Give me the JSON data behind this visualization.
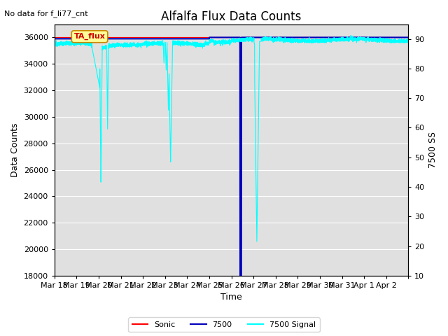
{
  "title": "Alfalfa Flux Data Counts",
  "top_left_text": "No data for f_li77_cnt",
  "xlabel": "Time",
  "ylabel_left": "Data Counts",
  "ylabel_right": "7500 SS",
  "ylim_left": [
    18000,
    37000
  ],
  "ylim_right": [
    10,
    95
  ],
  "yticks_left": [
    18000,
    20000,
    22000,
    24000,
    26000,
    28000,
    30000,
    32000,
    34000,
    36000
  ],
  "yticks_right": [
    10,
    20,
    30,
    40,
    50,
    60,
    70,
    80,
    90
  ],
  "bg_color": "#e0e0e0",
  "legend_labels": [
    "Sonic",
    "7500",
    "7500 Signal"
  ],
  "legend_colors": [
    "red",
    "#0000bb",
    "cyan"
  ],
  "box_label": "TA_flux",
  "box_bg": "#ffff99",
  "box_border": "#cc8800",
  "n_days": 16,
  "n_points": 5000,
  "baseline": 35700,
  "noise_std": 80
}
